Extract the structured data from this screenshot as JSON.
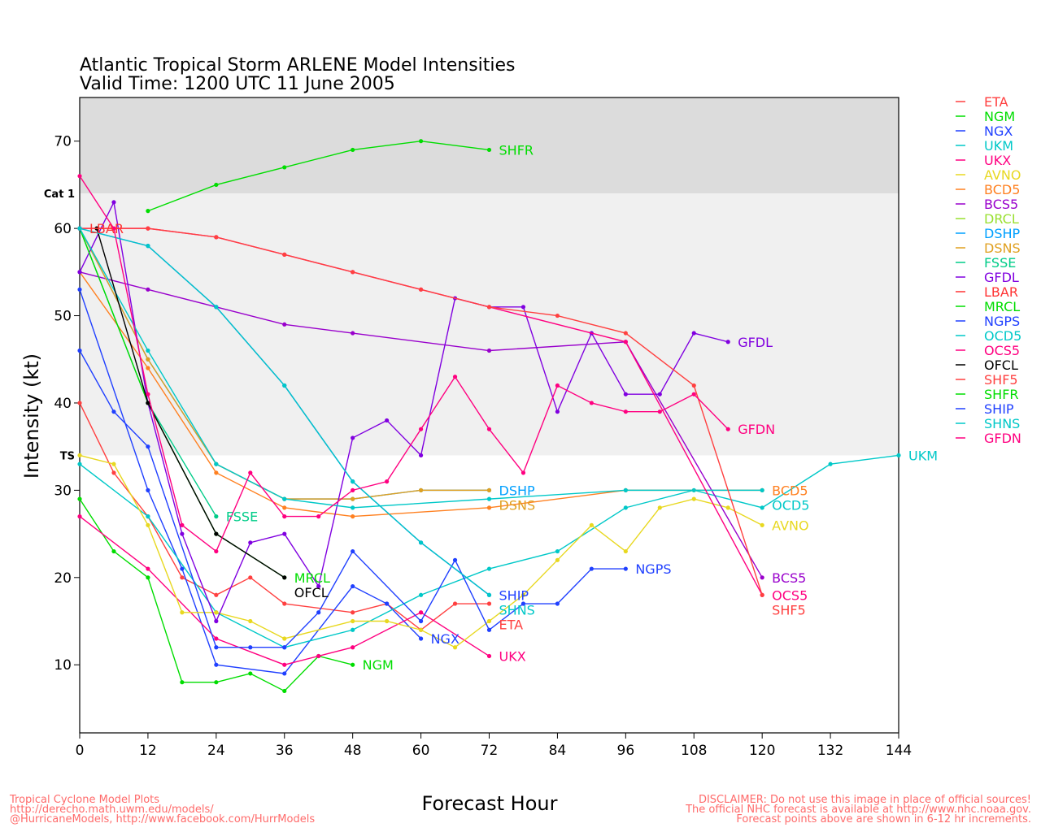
{
  "chart_data": {
    "type": "line",
    "title": "Atlantic Tropical Storm ARLENE Model Intensities",
    "subtitle": "Valid Time: 1200 UTC 11 June 2005",
    "xlabel": "Forecast Hour",
    "ylabel": "Intensity (kt)",
    "xlim": [
      0,
      144
    ],
    "ylim": [
      2.2,
      75
    ],
    "x_ticks": [
      0,
      12,
      24,
      36,
      48,
      60,
      72,
      84,
      96,
      108,
      120,
      132,
      144
    ],
    "y_ticks": [
      10,
      20,
      30,
      40,
      50,
      60,
      70
    ],
    "grid": false,
    "legend_placement": "right",
    "bands": [
      {
        "label": "Cat 1",
        "from": 64,
        "to": 75,
        "color": "#dcdcdc"
      },
      {
        "label": "TS",
        "from": 34,
        "to": 64,
        "color": "#f0f0f0"
      }
    ],
    "series": [
      {
        "name": "ETA",
        "color": "#ff4040",
        "x": [
          0,
          6,
          12,
          18,
          24,
          30,
          36,
          48,
          54,
          60,
          66,
          72
        ],
        "y": [
          40,
          32,
          27,
          20,
          18,
          20,
          17,
          16,
          17,
          14,
          17,
          17
        ]
      },
      {
        "name": "NGM",
        "color": "#00dd00",
        "x": [
          0,
          6,
          12,
          18,
          24,
          30,
          36,
          42,
          48
        ],
        "y": [
          29,
          23,
          20,
          8,
          8,
          9,
          7,
          11,
          10
        ]
      },
      {
        "name": "NGX",
        "color": "#2040ff",
        "x": [
          0,
          12,
          18,
          24,
          36,
          48,
          54,
          60
        ],
        "y": [
          53,
          30,
          21,
          10,
          9,
          19,
          17,
          13
        ]
      },
      {
        "name": "UKM",
        "color": "#00c8c8",
        "x": [
          0,
          12,
          24,
          36,
          48,
          60,
          72,
          84,
          96,
          108,
          120,
          132,
          144
        ],
        "y": [
          33,
          27,
          16,
          12,
          14,
          18,
          21,
          23,
          28,
          30,
          28,
          33,
          34
        ]
      },
      {
        "name": "UKX",
        "color": "#ff0080",
        "x": [
          0,
          12,
          24,
          36,
          42,
          48,
          60,
          72
        ],
        "y": [
          27,
          21,
          13,
          10,
          11,
          12,
          16,
          11
        ]
      },
      {
        "name": "AVNO",
        "color": "#e8d820",
        "x": [
          0,
          6,
          12,
          18,
          24,
          30,
          36,
          48,
          54,
          60,
          66,
          72,
          78,
          84,
          90,
          96,
          102,
          108,
          114,
          120
        ],
        "y": [
          34,
          33,
          26,
          16,
          16,
          15,
          13,
          15,
          15,
          14,
          12,
          15,
          18,
          22,
          26,
          23,
          28,
          29,
          28,
          26
        ]
      },
      {
        "name": "BCD5",
        "color": "#ff8020",
        "x": [
          0,
          12,
          24,
          36,
          48,
          72,
          96,
          120
        ],
        "y": [
          55,
          44,
          32,
          28,
          27,
          28,
          30,
          30
        ]
      },
      {
        "name": "BCS5",
        "color": "#9900cc",
        "x": [
          0,
          12,
          24,
          36,
          48,
          72,
          96,
          120
        ],
        "y": [
          55,
          53,
          51,
          49,
          48,
          46,
          47,
          20
        ]
      },
      {
        "name": "DRCL",
        "color": "#99e030",
        "x": [],
        "y": []
      },
      {
        "name": "DSHP",
        "color": "#00a0ff",
        "x": [
          0,
          12,
          24,
          36,
          48,
          60,
          72
        ],
        "y": [
          60,
          45,
          33,
          29,
          29,
          30,
          30
        ]
      },
      {
        "name": "DSNS",
        "color": "#e0a020",
        "x": [
          0,
          12,
          24,
          36,
          48,
          60,
          72
        ],
        "y": [
          60,
          45,
          33,
          29,
          29,
          30,
          30
        ]
      },
      {
        "name": "FSSE",
        "color": "#00cc88",
        "x": [
          0,
          12,
          24
        ],
        "y": [
          60,
          40,
          27
        ]
      },
      {
        "name": "GFDL",
        "color": "#8000e0",
        "x": [
          0,
          6,
          12,
          18,
          24,
          30,
          36,
          42,
          48,
          54,
          60,
          66,
          72,
          78,
          84,
          90,
          96,
          102,
          108,
          114
        ],
        "y": [
          55,
          63,
          40,
          25,
          15,
          24,
          25,
          19,
          36,
          38,
          34,
          52,
          51,
          51,
          39,
          48,
          41,
          41,
          48,
          47
        ]
      },
      {
        "name": "LBAR",
        "color": "#ff3333",
        "x": [
          0
        ],
        "y": [
          60
        ]
      },
      {
        "name": "MRCL",
        "color": "#00dd00",
        "x": [
          0,
          12,
          24,
          36
        ],
        "y": [
          60,
          40,
          25,
          20
        ]
      },
      {
        "name": "NGPS",
        "color": "#2040ff",
        "x": [
          0,
          6,
          12,
          24,
          30,
          36,
          42,
          48,
          60,
          66,
          72,
          78,
          84,
          90,
          96
        ],
        "y": [
          46,
          39,
          35,
          12,
          12,
          12,
          16,
          23,
          15,
          22,
          14,
          17,
          17,
          21,
          21
        ]
      },
      {
        "name": "OCD5",
        "color": "#00c8c8",
        "x": [
          0,
          12,
          24,
          36,
          48,
          72,
          96,
          120
        ],
        "y": [
          60,
          46,
          33,
          29,
          28,
          29,
          30,
          30
        ]
      },
      {
        "name": "OCS5",
        "color": "#ff0080",
        "x": [
          0,
          12,
          24,
          36,
          48,
          60,
          72,
          96,
          120
        ],
        "y": [
          60,
          60,
          59,
          57,
          55,
          53,
          51,
          47,
          18
        ]
      },
      {
        "name": "OFCL",
        "color": "#000000",
        "x": [
          3,
          12,
          24,
          36
        ],
        "y": [
          60,
          40,
          25,
          20
        ]
      },
      {
        "name": "SHF5",
        "color": "#ff4040",
        "x": [
          0,
          12,
          24,
          36,
          48,
          60,
          72,
          84,
          96,
          108,
          120
        ],
        "y": [
          60,
          60,
          59,
          57,
          55,
          53,
          51,
          50,
          48,
          42,
          18
        ]
      },
      {
        "name": "SHFR",
        "color": "#00dd00",
        "x": [
          12,
          24,
          36,
          48,
          60,
          72
        ],
        "y": [
          62,
          65,
          67,
          69,
          70,
          69
        ]
      },
      {
        "name": "SHIP",
        "color": "#2040ff",
        "x": [
          0,
          12,
          24,
          36,
          48,
          60,
          72
        ],
        "y": [
          60,
          58,
          51,
          42,
          31,
          24,
          18
        ]
      },
      {
        "name": "SHNS",
        "color": "#00c8c8",
        "x": [
          0,
          12,
          24,
          36,
          48,
          60,
          72
        ],
        "y": [
          60,
          58,
          51,
          42,
          31,
          24,
          18
        ]
      },
      {
        "name": "GFDN",
        "color": "#ff0080",
        "x": [
          0,
          6,
          12,
          18,
          24,
          30,
          36,
          42,
          48,
          54,
          60,
          66,
          72,
          78,
          84,
          90,
          96,
          102,
          108,
          114
        ],
        "y": [
          66,
          60,
          41,
          26,
          23,
          32,
          27,
          27,
          30,
          31,
          37,
          43,
          37,
          32,
          42,
          40,
          39,
          39,
          41,
          37
        ]
      }
    ]
  },
  "footer": {
    "left": [
      "Tropical Cyclone Model Plots",
      "http://derecho.math.uwm.edu/models/",
      "@HurricaneModels, http://www.facebook.com/HurrModels"
    ],
    "right": [
      "DISCLAIMER: Do not use this image in place of official sources!",
      "The official NHC forecast is available at http://www.nhc.noaa.gov.",
      "Forecast points above are shown in 6-12 hr increments."
    ]
  }
}
